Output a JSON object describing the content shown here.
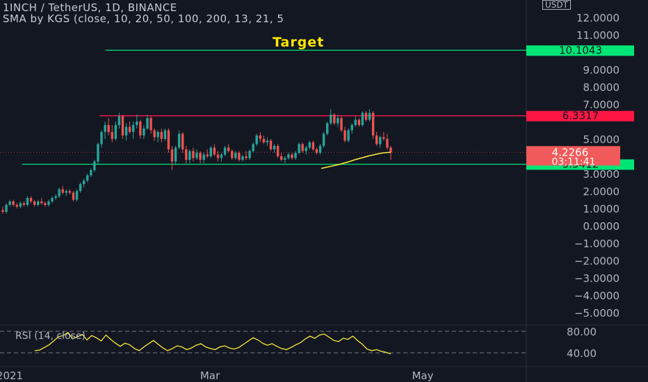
{
  "header": {
    "title": "1INCH / TetherUS, 1D, BINANCE",
    "indicator": "SMA by KGS (close, 10, 20, 50, 100, 200, 13, 21, 5"
  },
  "annotations": {
    "target": "Target"
  },
  "currency_label": "USDT",
  "rsi_label": "RSI (14, close)",
  "colors": {
    "background": "#131722",
    "up": "#26a69a",
    "down": "#ef5350",
    "green_line": "#00e676",
    "red_line": "#ff1744",
    "sma": "#ffeb3b",
    "text": "#b2b5be"
  },
  "chart_data": {
    "type": "candlestick",
    "title": "1INCH / TetherUS, 1D, BINANCE",
    "y_axis": {
      "ticks": [
        "12.0000",
        "11.0000",
        "9.0000",
        "8.0000",
        "7.0000",
        "5.0000",
        "3.0000",
        "2.0000",
        "1.0000",
        "0.0000",
        "−1.0000",
        "−2.0000",
        "−3.0000",
        "−4.0000",
        "−5.0000"
      ],
      "tick_values": [
        12,
        11,
        9,
        8,
        7,
        5,
        3,
        2,
        1,
        0,
        -1,
        -2,
        -3,
        -4,
        -5
      ],
      "range": [
        -5.5,
        13.5
      ]
    },
    "x_axis": {
      "ticks": [
        "2021",
        "Mar",
        "May"
      ]
    },
    "levels": [
      {
        "label": "10.1043",
        "value": 10.1043,
        "color": "green"
      },
      {
        "label": "6.3317",
        "value": 6.3317,
        "color": "red"
      },
      {
        "label": "3.5412",
        "value": 3.5412,
        "color": "green"
      }
    ],
    "last_price": {
      "label": "4.2266",
      "value": 4.2266,
      "countdown": "03:11:41"
    },
    "candles": [
      [
        0.9,
        1.1,
        0.7,
        0.8
      ],
      [
        0.8,
        1.3,
        0.7,
        1.2
      ],
      [
        1.2,
        1.5,
        1.1,
        1.4
      ],
      [
        1.4,
        1.5,
        1.1,
        1.2
      ],
      [
        1.2,
        1.3,
        1.0,
        1.1
      ],
      [
        1.1,
        1.4,
        1.0,
        1.3
      ],
      [
        1.3,
        1.4,
        1.1,
        1.2
      ],
      [
        1.2,
        1.7,
        1.1,
        1.6
      ],
      [
        1.6,
        1.7,
        1.3,
        1.4
      ],
      [
        1.4,
        1.5,
        1.1,
        1.2
      ],
      [
        1.2,
        1.5,
        1.1,
        1.4
      ],
      [
        1.4,
        1.6,
        1.2,
        1.3
      ],
      [
        1.3,
        1.4,
        1.1,
        1.2
      ],
      [
        1.2,
        1.5,
        1.1,
        1.4
      ],
      [
        1.4,
        1.7,
        1.3,
        1.6
      ],
      [
        1.6,
        1.8,
        1.5,
        1.7
      ],
      [
        1.7,
        2.2,
        1.6,
        2.1
      ],
      [
        2.1,
        2.3,
        1.8,
        1.9
      ],
      [
        1.9,
        2.1,
        1.7,
        2.0
      ],
      [
        2.0,
        2.1,
        1.8,
        1.9
      ],
      [
        1.9,
        2.0,
        1.4,
        1.5
      ],
      [
        1.5,
        2.1,
        1.4,
        2.0
      ],
      [
        2.0,
        2.5,
        1.9,
        2.4
      ],
      [
        2.4,
        2.7,
        2.2,
        2.6
      ],
      [
        2.6,
        3.0,
        2.5,
        2.9
      ],
      [
        2.9,
        3.3,
        2.8,
        3.2
      ],
      [
        3.2,
        3.8,
        3.1,
        3.7
      ],
      [
        3.7,
        4.8,
        3.5,
        4.7
      ],
      [
        4.7,
        5.5,
        4.5,
        5.4
      ],
      [
        5.4,
        6.0,
        5.0,
        5.8
      ],
      [
        5.8,
        6.2,
        5.2,
        5.4
      ],
      [
        5.4,
        5.8,
        4.8,
        5.0
      ],
      [
        5.0,
        6.0,
        4.9,
        5.8
      ],
      [
        5.8,
        6.5,
        5.6,
        6.3
      ],
      [
        6.3,
        6.4,
        5.0,
        5.2
      ],
      [
        5.2,
        5.9,
        4.9,
        5.7
      ],
      [
        5.7,
        6.0,
        5.3,
        5.4
      ],
      [
        5.4,
        6.0,
        5.0,
        5.8
      ],
      [
        5.8,
        6.4,
        5.6,
        6.0
      ],
      [
        6.0,
        6.1,
        5.0,
        5.2
      ],
      [
        5.2,
        5.8,
        5.0,
        5.6
      ],
      [
        5.6,
        6.4,
        5.5,
        6.2
      ],
      [
        6.2,
        6.3,
        5.3,
        5.5
      ],
      [
        5.5,
        5.6,
        4.9,
        5.1
      ],
      [
        5.1,
        5.5,
        4.8,
        5.4
      ],
      [
        5.4,
        5.6,
        4.8,
        5.0
      ],
      [
        5.0,
        5.6,
        4.9,
        5.5
      ],
      [
        5.5,
        5.6,
        4.2,
        4.4
      ],
      [
        4.4,
        4.6,
        3.2,
        3.7
      ],
      [
        3.7,
        4.6,
        3.5,
        4.5
      ],
      [
        4.5,
        5.5,
        4.4,
        5.3
      ],
      [
        5.3,
        5.4,
        4.2,
        4.4
      ],
      [
        4.4,
        4.6,
        3.6,
        3.8
      ],
      [
        3.8,
        4.4,
        3.6,
        4.3
      ],
      [
        4.3,
        4.5,
        3.7,
        3.9
      ],
      [
        3.9,
        4.4,
        3.8,
        4.2
      ],
      [
        4.2,
        4.3,
        3.6,
        3.8
      ],
      [
        3.8,
        4.2,
        3.6,
        4.1
      ],
      [
        4.1,
        4.4,
        3.9,
        4.0
      ],
      [
        4.0,
        4.6,
        3.9,
        4.5
      ],
      [
        4.5,
        4.7,
        4.0,
        4.1
      ],
      [
        4.1,
        4.3,
        3.7,
        3.9
      ],
      [
        3.9,
        4.2,
        3.7,
        4.1
      ],
      [
        4.1,
        4.6,
        4.0,
        4.5
      ],
      [
        4.5,
        4.7,
        4.2,
        4.3
      ],
      [
        4.3,
        4.4,
        3.8,
        3.9
      ],
      [
        3.9,
        4.3,
        3.8,
        4.2
      ],
      [
        4.2,
        4.3,
        3.7,
        3.8
      ],
      [
        3.8,
        4.1,
        3.7,
        4.0
      ],
      [
        4.0,
        4.3,
        3.8,
        3.9
      ],
      [
        3.9,
        4.4,
        3.8,
        4.3
      ],
      [
        4.3,
        4.8,
        4.2,
        4.7
      ],
      [
        4.7,
        5.3,
        4.6,
        5.2
      ],
      [
        5.2,
        5.4,
        4.8,
        5.0
      ],
      [
        5.0,
        5.2,
        4.7,
        4.8
      ],
      [
        4.8,
        5.1,
        4.6,
        4.9
      ],
      [
        4.9,
        5.0,
        4.3,
        4.4
      ],
      [
        4.4,
        4.7,
        4.2,
        4.6
      ],
      [
        4.6,
        4.7,
        3.9,
        4.0
      ],
      [
        4.0,
        4.2,
        3.7,
        3.8
      ],
      [
        3.8,
        4.0,
        3.6,
        3.9
      ],
      [
        3.9,
        4.2,
        3.8,
        4.1
      ],
      [
        4.1,
        4.2,
        3.8,
        3.9
      ],
      [
        3.9,
        4.3,
        3.8,
        4.2
      ],
      [
        4.2,
        4.8,
        4.1,
        4.7
      ],
      [
        4.7,
        4.8,
        4.2,
        4.3
      ],
      [
        4.3,
        4.6,
        4.1,
        4.5
      ],
      [
        4.5,
        4.9,
        4.4,
        4.8
      ],
      [
        4.8,
        4.9,
        4.3,
        4.4
      ],
      [
        4.4,
        4.5,
        4.1,
        4.2
      ],
      [
        4.2,
        4.7,
        4.1,
        4.6
      ],
      [
        4.6,
        5.4,
        4.5,
        5.3
      ],
      [
        5.3,
        6.0,
        5.2,
        5.9
      ],
      [
        5.9,
        6.7,
        5.8,
        6.4
      ],
      [
        6.4,
        6.5,
        5.8,
        5.9
      ],
      [
        5.9,
        6.4,
        5.7,
        6.2
      ],
      [
        6.2,
        6.3,
        5.4,
        5.5
      ],
      [
        5.5,
        5.7,
        4.8,
        4.9
      ],
      [
        4.9,
        5.6,
        4.8,
        5.5
      ],
      [
        5.5,
        5.9,
        5.3,
        5.8
      ],
      [
        5.8,
        6.3,
        5.7,
        6.1
      ],
      [
        6.1,
        6.2,
        5.7,
        5.8
      ],
      [
        5.8,
        6.6,
        5.7,
        6.5
      ],
      [
        6.5,
        6.6,
        6.0,
        6.1
      ],
      [
        6.1,
        6.7,
        6.0,
        6.5
      ],
      [
        6.5,
        6.6,
        5.0,
        5.2
      ],
      [
        5.2,
        5.4,
        4.6,
        4.7
      ],
      [
        4.7,
        5.2,
        4.5,
        5.1
      ],
      [
        5.1,
        5.4,
        4.9,
        5.0
      ],
      [
        5.0,
        5.3,
        4.4,
        4.5
      ],
      [
        4.5,
        4.6,
        3.8,
        4.23
      ]
    ],
    "sma": [
      3.3,
      3.34,
      3.38,
      3.42,
      3.46,
      3.5,
      3.55,
      3.6,
      3.65,
      3.7,
      3.76,
      3.82,
      3.87,
      3.92,
      3.97,
      4.02,
      4.06,
      4.1,
      4.14,
      4.18,
      4.2,
      4.22,
      4.23
    ],
    "rsi": {
      "range": [
        20,
        100
      ],
      "ticks": [
        "80.00",
        "40.00"
      ],
      "tick_values": [
        80,
        40
      ],
      "values": [
        44,
        45,
        50,
        55,
        62,
        70,
        72,
        78,
        66,
        70,
        74,
        64,
        72,
        68,
        62,
        73,
        65,
        58,
        52,
        58,
        55,
        48,
        44,
        51,
        57,
        63,
        56,
        49,
        44,
        48,
        53,
        51,
        46,
        49,
        54,
        57,
        51,
        48,
        46,
        51,
        53,
        49,
        47,
        50,
        56,
        62,
        68,
        64,
        58,
        54,
        57,
        52,
        48,
        46,
        50,
        55,
        59,
        66,
        71,
        67,
        73,
        75,
        69,
        63,
        61,
        67,
        65,
        71,
        63,
        56,
        47,
        44,
        46,
        43,
        41,
        38
      ]
    }
  }
}
